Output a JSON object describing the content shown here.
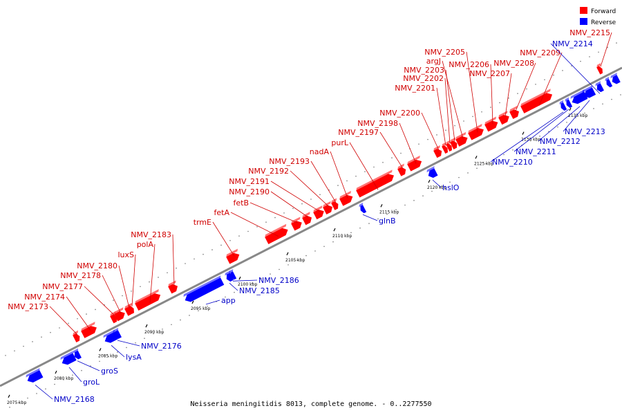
{
  "colors": {
    "forward": "#ff0000",
    "reverse": "#0000ff",
    "axis": "#888888",
    "forward_text": "#d00000",
    "reverse_text": "#0000c8"
  },
  "legend": {
    "forward": "Forward",
    "reverse": "Reverse"
  },
  "caption": "Neisseria meningitidis 8013, complete genome. - 0..2277550",
  "ticks": [
    "2075 kbp",
    "2080 kbp",
    "2085 kbp",
    "2090 kbp",
    "2095 kbp",
    "2100 kbp",
    "2105 kbp",
    "2110 kbp",
    "2115 kbp",
    "2120 kbp",
    "2125 kbp",
    "2130 kbp",
    "2135 kbp"
  ],
  "forward_genes": [
    {
      "name": "NMV_2173"
    },
    {
      "name": "NMV_2174"
    },
    {
      "name": "NMV_2177"
    },
    {
      "name": "NMV_2178"
    },
    {
      "name": "NMV_2180"
    },
    {
      "name": "luxS"
    },
    {
      "name": "polA"
    },
    {
      "name": "NMV_2183"
    },
    {
      "name": "trmE"
    },
    {
      "name": "fetA"
    },
    {
      "name": "fetB"
    },
    {
      "name": "NMV_2190"
    },
    {
      "name": "NMV_2191"
    },
    {
      "name": "NMV_2192"
    },
    {
      "name": "NMV_2193"
    },
    {
      "name": "nadA"
    },
    {
      "name": "purL"
    },
    {
      "name": "NMV_2197"
    },
    {
      "name": "NMV_2198"
    },
    {
      "name": "NMV_2200"
    },
    {
      "name": "NMV_2201"
    },
    {
      "name": "NMV_2202"
    },
    {
      "name": "NMV_2203"
    },
    {
      "name": "argJ"
    },
    {
      "name": "NMV_2205"
    },
    {
      "name": "NMV_2206"
    },
    {
      "name": "NMV_2207"
    },
    {
      "name": "NMV_2208"
    },
    {
      "name": "NMV_2209"
    },
    {
      "name": "NMV_2215"
    }
  ],
  "reverse_genes": [
    {
      "name": "NMV_2168"
    },
    {
      "name": "groL"
    },
    {
      "name": "groS"
    },
    {
      "name": "lysA"
    },
    {
      "name": "NMV_2176"
    },
    {
      "name": "app"
    },
    {
      "name": "NMV_2185"
    },
    {
      "name": "NMV_2186"
    },
    {
      "name": "glnB"
    },
    {
      "name": "hslO"
    },
    {
      "name": "NMV_2210"
    },
    {
      "name": "NMV_2211"
    },
    {
      "name": "NMV_2212"
    },
    {
      "name": "NMV_2213"
    },
    {
      "name": "NMV_2214"
    }
  ]
}
